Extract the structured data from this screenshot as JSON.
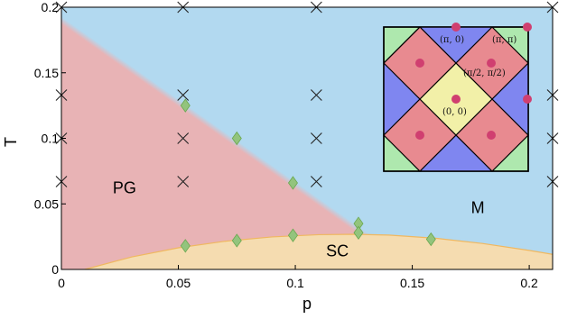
{
  "chart_data": {
    "type": "scatter",
    "xlabel": "p",
    "ylabel": "T",
    "xlim": [
      0,
      0.21
    ],
    "ylim": [
      0,
      0.2
    ],
    "x_ticks": [
      {
        "value": 0,
        "label": "0"
      },
      {
        "value": 0.05,
        "label": "0.05"
      },
      {
        "value": 0.1,
        "label": "0.1"
      },
      {
        "value": 0.15,
        "label": "0.15"
      },
      {
        "value": 0.2,
        "label": "0.2"
      }
    ],
    "y_ticks": [
      {
        "value": 0,
        "label": "0"
      },
      {
        "value": 0.05,
        "label": "0.05"
      },
      {
        "value": 0.1,
        "label": "0.1"
      },
      {
        "value": 0.15,
        "label": "0.15"
      },
      {
        "value": 0.2,
        "label": "0.2"
      }
    ],
    "regions": [
      {
        "label": "PG",
        "x": 0.027,
        "y": 0.058,
        "color": "#e8b3b5"
      },
      {
        "label": "M",
        "x": 0.178,
        "y": 0.043,
        "color": "#b2d9f0"
      },
      {
        "label": "SC",
        "x": 0.118,
        "y": 0.01,
        "color": "#f5dcb0"
      }
    ],
    "boundaries": {
      "pg_line": [
        [
          0,
          0.19
        ],
        [
          0.127,
          0.03
        ]
      ],
      "sc_dome": [
        [
          0.01,
          0
        ],
        [
          0.03,
          0.0095
        ],
        [
          0.05,
          0.0165
        ],
        [
          0.07,
          0.0215
        ],
        [
          0.09,
          0.0248
        ],
        [
          0.11,
          0.0265
        ],
        [
          0.125,
          0.0268
        ],
        [
          0.14,
          0.0262
        ],
        [
          0.16,
          0.0238
        ],
        [
          0.18,
          0.0198
        ],
        [
          0.2,
          0.0145
        ],
        [
          0.21,
          0.0115
        ]
      ]
    },
    "series": [
      {
        "marker": "x",
        "color": "#222222",
        "points": [
          [
            0,
            0.2
          ],
          [
            0,
            0.133
          ],
          [
            0,
            0.1
          ],
          [
            0,
            0.067
          ],
          [
            0.052,
            0.2
          ],
          [
            0.052,
            0.133
          ],
          [
            0.052,
            0.1
          ],
          [
            0.052,
            0.067
          ],
          [
            0.109,
            0.2
          ],
          [
            0.109,
            0.133
          ],
          [
            0.109,
            0.1
          ],
          [
            0.109,
            0.067
          ],
          [
            0.21,
            0.2
          ],
          [
            0.21,
            0.133
          ],
          [
            0.21,
            0.1
          ],
          [
            0.21,
            0.067
          ]
        ]
      },
      {
        "marker": "diamond",
        "color": "#93c47d",
        "points": [
          [
            0.053,
            0.125
          ],
          [
            0.075,
            0.1
          ],
          [
            0.099,
            0.066
          ],
          [
            0.127,
            0.035
          ],
          [
            0.127,
            0.028
          ],
          [
            0.053,
            0.018
          ],
          [
            0.075,
            0.022
          ],
          [
            0.099,
            0.026
          ],
          [
            0.158,
            0.023
          ]
        ]
      }
    ],
    "inset": {
      "labels": [
        "(π, 0)",
        "(π, π)",
        "(π/2, π/2)",
        "(0, 0)"
      ],
      "colors": {
        "corner": "#aee8ae",
        "side": "#7f86f0",
        "diamond": "#e88a90",
        "center": "#f2f0a8",
        "dot": "#d03f70"
      }
    }
  }
}
